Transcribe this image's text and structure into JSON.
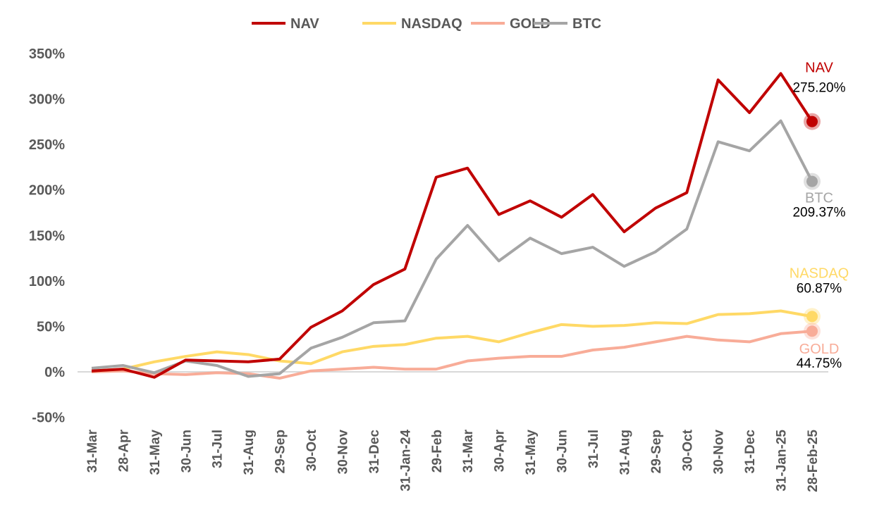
{
  "chart_data": {
    "type": "line",
    "categories": [
      "31-Mar",
      "28-Apr",
      "31-May",
      "30-Jun",
      "31-Jul",
      "31-Aug",
      "29-Sep",
      "30-Oct",
      "30-Nov",
      "31-Dec",
      "31-Jan-24",
      "29-Feb",
      "31-Mar",
      "30-Apr",
      "31-May",
      "30-Jun",
      "31-Jul",
      "31-Aug",
      "29-Sep",
      "30-Oct",
      "30-Nov",
      "31-Dec",
      "31-Jan-25",
      "28-Feb-25"
    ],
    "ylim": [
      -50,
      350
    ],
    "yticks": [
      -50,
      0,
      50,
      100,
      150,
      200,
      250,
      300,
      350
    ],
    "ytick_labels": [
      "-50%",
      "0%",
      "50%",
      "100%",
      "150%",
      "200%",
      "250%",
      "300%",
      "350%"
    ],
    "legend_position": "top",
    "grid": false,
    "series": [
      {
        "name": "NAV",
        "color": "#c00000",
        "values": [
          1,
          3,
          -6,
          13,
          12,
          11,
          14,
          49,
          67,
          96,
          113,
          214,
          224,
          173,
          188,
          170,
          195,
          154,
          180,
          197,
          321,
          285,
          328,
          275.2
        ],
        "end_label": "275.20%"
      },
      {
        "name": "NASDAQ",
        "color": "#ffd966",
        "values": [
          1,
          3,
          11,
          17,
          22,
          19,
          12,
          9,
          22,
          28,
          30,
          37,
          39,
          33,
          43,
          52,
          50,
          51,
          54,
          53,
          63,
          64,
          67,
          60.87
        ],
        "end_label": "60.87%"
      },
      {
        "name": "GOLD",
        "color": "#f8ac98",
        "values": [
          0,
          1,
          -2,
          -3,
          -1,
          -2,
          -7,
          1,
          3,
          5,
          3,
          3,
          12,
          15,
          17,
          17,
          24,
          27,
          33,
          39,
          35,
          33,
          42,
          44.75
        ],
        "end_label": "44.75%"
      },
      {
        "name": "BTC",
        "color": "#a5a5a5",
        "values": [
          4,
          7,
          -1,
          12,
          7,
          -5,
          -2,
          26,
          38,
          54,
          56,
          124,
          161,
          122,
          147,
          130,
          137,
          116,
          132,
          157,
          253,
          243,
          276,
          209.37
        ],
        "end_label": "209.37%"
      }
    ]
  }
}
